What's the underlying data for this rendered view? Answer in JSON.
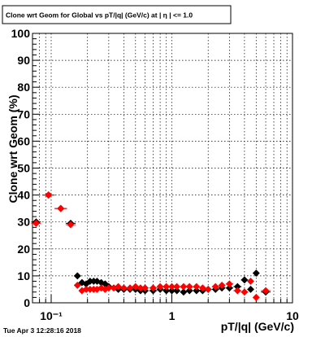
{
  "chart_data": {
    "type": "scatter",
    "title": "Clone wrt Geom for Global vs pT/|q| (GeV/c) at |  η | <= 1.0",
    "xlabel": "pT/|q| (GeV/c)",
    "ylabel": "Clone wrt Geom (%)",
    "x_scale": "log",
    "xlim": [
      0.07,
      10
    ],
    "ylim": [
      0,
      100
    ],
    "x_tick_labels": [
      "10⁻¹",
      "1",
      "10"
    ],
    "y_tick_labels": [
      "0",
      "10",
      "20",
      "30",
      "40",
      "50",
      "60",
      "70",
      "80",
      "90",
      "100"
    ],
    "grid": true,
    "series": [
      {
        "color": "#000000",
        "marker": "diamond",
        "x": [
          0.075,
          0.095,
          0.12,
          0.145,
          0.165,
          0.18,
          0.195,
          0.21,
          0.225,
          0.24,
          0.26,
          0.28,
          0.3,
          0.33,
          0.36,
          0.4,
          0.45,
          0.5,
          0.55,
          0.6,
          0.7,
          0.8,
          0.9,
          1.0,
          1.1,
          1.25,
          1.4,
          1.6,
          1.8,
          2.0,
          2.3,
          2.6,
          3.0,
          3.5,
          4.0,
          4.5,
          5.0,
          6.0
        ],
        "y": [
          30,
          40,
          35,
          29.5,
          10,
          7.5,
          7,
          8,
          8,
          8,
          7.5,
          7,
          6,
          5.5,
          5,
          5,
          5,
          5,
          4.5,
          4.5,
          4.5,
          5,
          4.5,
          4.5,
          4.5,
          4,
          4.5,
          4.5,
          4.5,
          5,
          5,
          5.5,
          5.5,
          6,
          8.5,
          5,
          11,
          4
        ]
      },
      {
        "color": "#ff0000",
        "marker": "diamond",
        "x": [
          0.075,
          0.095,
          0.12,
          0.145,
          0.165,
          0.18,
          0.195,
          0.21,
          0.225,
          0.24,
          0.26,
          0.28,
          0.3,
          0.33,
          0.36,
          0.4,
          0.45,
          0.5,
          0.55,
          0.6,
          0.7,
          0.8,
          0.9,
          1.0,
          1.1,
          1.25,
          1.4,
          1.6,
          1.8,
          2.0,
          2.3,
          2.6,
          3.0,
          3.5,
          4.0,
          4.5,
          5.0,
          6.0
        ],
        "y": [
          29.5,
          40,
          35,
          29,
          6.5,
          4.5,
          5,
          5,
          5,
          5,
          5.5,
          5,
          5.5,
          5.5,
          6,
          5.5,
          5.5,
          6,
          5.5,
          5.5,
          5.5,
          6,
          6,
          6,
          6,
          6,
          6,
          6,
          5.5,
          5,
          6,
          6.5,
          7,
          4.5,
          4,
          8,
          2,
          4.5
        ]
      }
    ]
  },
  "stamp": "Tue Apr  3 12:28:16 2018"
}
